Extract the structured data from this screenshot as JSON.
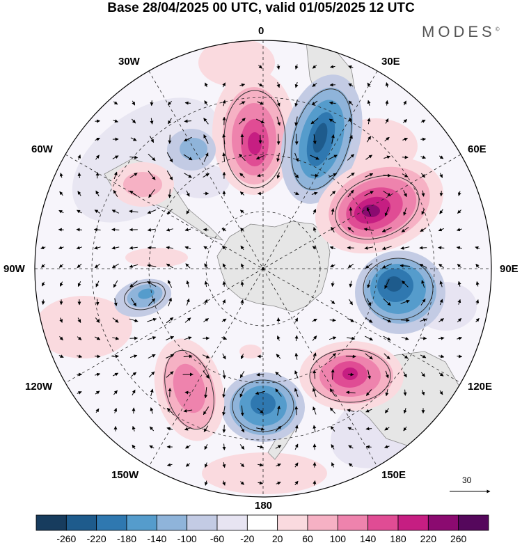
{
  "title": "Base 28/04/2025 00 UTC, valid 01/05/2025 12 UTC",
  "brand": "MODES",
  "brand_mark": "©",
  "lon_labels": {
    "north": "0",
    "lon30e": "30E",
    "lon60e": "60E",
    "lon90e": "90E",
    "lon120e": "120E",
    "lon150e": "150E",
    "south": "180",
    "lon150w": "150W",
    "lon120w": "120W",
    "lon90w": "90W",
    "lon60w": "60W",
    "lon30w": "30W"
  },
  "reference_vector": "30",
  "colorbar": {
    "ticks": [
      "-260",
      "-220",
      "-180",
      "-140",
      "-100",
      "-60",
      "-20",
      "20",
      "60",
      "100",
      "140",
      "180",
      "220",
      "260"
    ],
    "colors": [
      "#173c5e",
      "#1e5b8c",
      "#2f78b0",
      "#559ccc",
      "#8fb4da",
      "#c3cbe4",
      "#e7e4f2",
      "#ffffff",
      "#fadadf",
      "#f6b1c4",
      "#ee83ad",
      "#e04c94",
      "#c61e82",
      "#8b0a70",
      "#55085c"
    ]
  },
  "colors": {
    "land": "#e6e6e6",
    "coast": "#888888",
    "grid": "#333333"
  }
}
